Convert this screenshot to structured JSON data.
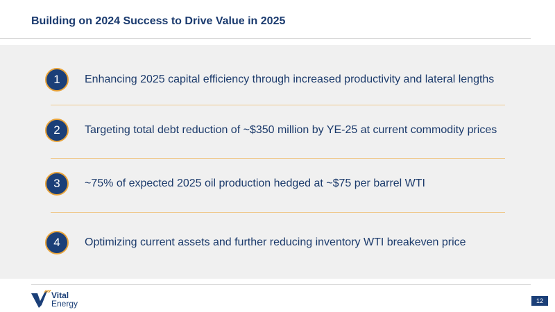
{
  "slide": {
    "title": "Building on 2024 Success to Drive Value in 2025",
    "items": [
      {
        "number": "1",
        "text": "Enhancing 2025 capital efficiency through increased productivity and lateral lengths"
      },
      {
        "number": "2",
        "text": "Targeting total debt reduction of ~$350 million by YE-25 at current commodity prices"
      },
      {
        "number": "3",
        "text": "~75% of expected 2025 oil production hedged at ~$75 per barrel WTI"
      },
      {
        "number": "4",
        "text": "Optimizing current assets and further reducing inventory WTI breakeven price"
      }
    ]
  },
  "footer": {
    "logo_line1": "Vital",
    "logo_line2": "Energy",
    "page_number": "12"
  },
  "colors": {
    "brand_navy": "#1b3f78",
    "accent_orange": "#e8a33a",
    "panel_gray": "#f0f0f0"
  }
}
